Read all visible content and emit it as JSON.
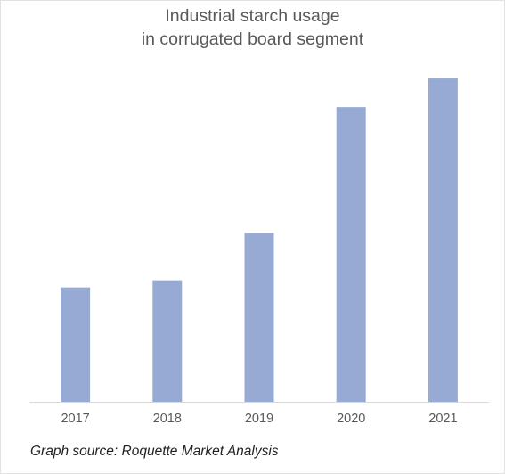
{
  "chart_data": {
    "type": "bar",
    "title": [
      "Industrial starch usage",
      "in corrugated board segment"
    ],
    "categories": [
      "2017",
      "2018",
      "2019",
      "2020",
      "2021"
    ],
    "values": [
      128,
      136,
      189,
      330,
      362
    ],
    "ylim": [
      0,
      380
    ],
    "xlabel": "",
    "ylabel": "",
    "y_axis_visible": false,
    "grid": false,
    "legend": "none",
    "bar_color": "#96aad4",
    "axis_color": "#d9d9d9",
    "tick_label_color": "#595959"
  },
  "footer": {
    "source": "Graph source: Roquette Market Analysis"
  }
}
